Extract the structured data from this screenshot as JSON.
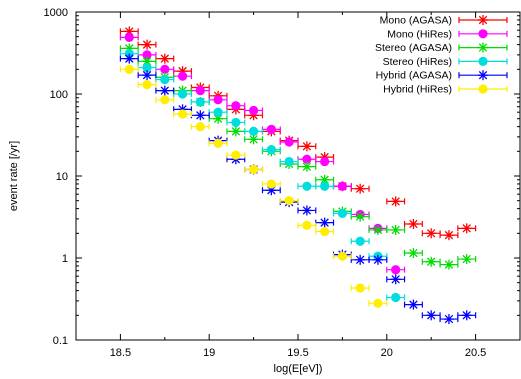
{
  "chart_data": {
    "type": "scatter",
    "title": "",
    "xlabel": "log(E[eV])",
    "ylabel": "event rate [/yr]",
    "xlim": [
      18.25,
      20.75
    ],
    "ylim": [
      0.1,
      1000
    ],
    "yscale": "log",
    "grid": false,
    "legend_position": "top-right",
    "x_ticks": [
      "18.5",
      "19",
      "19.5",
      "20",
      "20.5"
    ],
    "y_ticks": [
      "0.1",
      "1",
      "10",
      "100",
      "1000"
    ],
    "series": [
      {
        "name": "Mono (AGASA)",
        "color": "#ff0000",
        "marker": "asterisk",
        "x": [
          18.55,
          18.65,
          18.75,
          18.85,
          18.95,
          19.05,
          19.15,
          19.25,
          19.35,
          19.45,
          19.55,
          19.65,
          19.75,
          19.85,
          20.05,
          20.15,
          20.25,
          20.35,
          20.45
        ],
        "y": [
          580,
          400,
          270,
          190,
          120,
          95,
          65,
          55,
          35,
          27,
          23,
          17,
          7.5,
          7,
          4.9,
          2.6,
          2,
          1.9,
          2.3
        ]
      },
      {
        "name": "Mono (HiRes)",
        "color": "#ff00ff",
        "marker": "circle",
        "x": [
          18.55,
          18.65,
          18.75,
          18.85,
          18.95,
          19.05,
          19.15,
          19.25,
          19.35,
          19.45,
          19.55,
          19.65,
          19.75,
          19.85,
          19.95,
          20.05
        ],
        "y": [
          490,
          300,
          200,
          165,
          110,
          85,
          72,
          63,
          37,
          26,
          16,
          15,
          7.5,
          3.4,
          2.3,
          0.72
        ]
      },
      {
        "name": "Stereo (AGASA)",
        "color": "#00dd00",
        "marker": "asterisk",
        "x": [
          18.55,
          18.65,
          18.75,
          18.85,
          18.95,
          19.05,
          19.15,
          19.25,
          19.35,
          19.45,
          19.55,
          19.65,
          19.75,
          19.85,
          19.95,
          20.05,
          20.15,
          20.25,
          20.35,
          20.45
        ],
        "y": [
          360,
          250,
          160,
          110,
          80,
          50,
          35,
          28,
          20,
          14,
          13,
          9,
          3.7,
          3.2,
          2.2,
          2.2,
          1.15,
          0.9,
          0.83,
          0.97
        ]
      },
      {
        "name": "Stereo (HiRes)",
        "color": "#00dddd",
        "marker": "circle",
        "x": [
          18.55,
          18.65,
          18.75,
          18.85,
          18.95,
          19.05,
          19.15,
          19.25,
          19.35,
          19.45,
          19.55,
          19.65,
          19.75,
          19.85,
          19.95,
          20.05
        ],
        "y": [
          310,
          210,
          150,
          100,
          80,
          60,
          45,
          35,
          21,
          15,
          7.5,
          7.5,
          3.5,
          1.6,
          1.05,
          0.33
        ]
      },
      {
        "name": "Hybrid (AGASA)",
        "color": "#0000ff",
        "marker": "asterisk",
        "x": [
          18.55,
          18.65,
          18.75,
          18.85,
          18.95,
          19.05,
          19.15,
          19.25,
          19.35,
          19.45,
          19.55,
          19.65,
          19.75,
          19.85,
          19.95,
          20.05,
          20.15,
          20.25,
          20.35,
          20.45
        ],
        "y": [
          270,
          170,
          110,
          65,
          55,
          27,
          16,
          12,
          6.7,
          4.8,
          3.8,
          2.7,
          1.1,
          0.95,
          0.95,
          0.55,
          0.27,
          0.2,
          0.18,
          0.2
        ]
      },
      {
        "name": "Hybrid (HiRes)",
        "color": "#ffee00",
        "marker": "circle",
        "x": [
          18.55,
          18.65,
          18.75,
          18.85,
          18.95,
          19.05,
          19.15,
          19.25,
          19.35,
          19.45,
          19.55,
          19.65,
          19.75,
          19.85,
          19.95
        ],
        "y": [
          200,
          130,
          85,
          57,
          40,
          25,
          18,
          12,
          8,
          5,
          2.5,
          2.1,
          1.05,
          0.43,
          0.28
        ]
      }
    ]
  }
}
